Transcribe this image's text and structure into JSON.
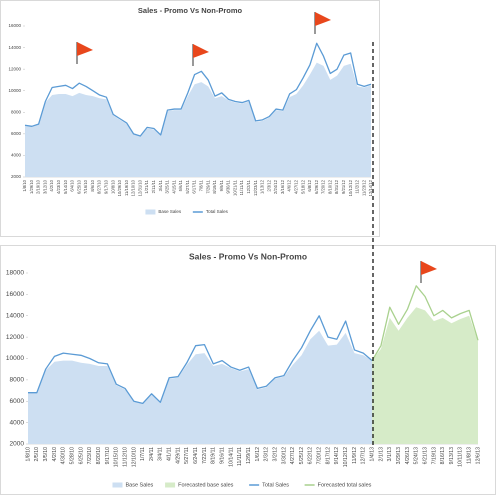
{
  "chart_data": [
    {
      "type": "area-line",
      "title": "Sales - Promo Vs Non-Promo",
      "categories": [
        "1/8/10",
        "1/29/10",
        "2/19/10",
        "3/12/10",
        "4/2/10",
        "4/23/10",
        "5/14/10",
        "6/4/10",
        "6/25/10",
        "7/16/10",
        "8/6/10",
        "8/27/10",
        "9/17/10",
        "10/8/10",
        "10/29/10",
        "11/19/10",
        "12/10/10",
        "12/31/10",
        "1/21/11",
        "2/11/11",
        "3/4/11",
        "3/25/11",
        "4/15/11",
        "5/6/11",
        "5/27/11",
        "6/17/11",
        "7/8/11",
        "7/29/11",
        "8/19/11",
        "9/9/11",
        "9/30/11",
        "10/21/11",
        "11/11/11",
        "12/2/11",
        "12/23/11",
        "1/13/12",
        "2/3/12",
        "2/24/12",
        "3/16/12",
        "4/6/12",
        "4/27/12",
        "5/18/12",
        "6/8/12",
        "6/29/12",
        "7/20/12",
        "8/10/12",
        "8/31/12",
        "9/21/12",
        "10/12/12",
        "11/2/12",
        "11/23/12",
        "12/14/12"
      ],
      "series": [
        {
          "name": "Base Sales",
          "style": "area",
          "color": "#cddff2",
          "values": [
            6800,
            6700,
            6900,
            8900,
            9600,
            9700,
            9700,
            9500,
            9800,
            9600,
            9500,
            9300,
            9200,
            7700,
            7300,
            6900,
            6000,
            5800,
            6500,
            6400,
            5900,
            8100,
            8200,
            8200,
            9500,
            10600,
            10800,
            10400,
            9300,
            9500,
            9100,
            8900,
            8800,
            9000,
            7100,
            7200,
            7500,
            8200,
            8100,
            9400,
            9700,
            10500,
            11500,
            12600,
            12300,
            11000,
            11400,
            12300,
            12500,
            10400,
            10300,
            10500
          ]
        },
        {
          "name": "Total Sales",
          "style": "line",
          "color": "#5b9bd5",
          "values": [
            6800,
            6700,
            6900,
            9000,
            10300,
            10400,
            10500,
            10200,
            10700,
            10400,
            10000,
            9600,
            9400,
            7800,
            7400,
            7000,
            6000,
            5800,
            6600,
            6500,
            5900,
            8200,
            8300,
            8300,
            9800,
            11500,
            11800,
            11000,
            9500,
            9800,
            9200,
            9000,
            8900,
            9100,
            7200,
            7300,
            7600,
            8300,
            8200,
            9700,
            10100,
            11200,
            12400,
            14400,
            13200,
            11600,
            12000,
            13300,
            13500,
            10600,
            10400,
            10600
          ]
        }
      ],
      "ylim": [
        2000,
        16000
      ],
      "yticks": [
        2000,
        4000,
        6000,
        8000,
        10000,
        12000,
        14000,
        16000
      ]
    },
    {
      "type": "area-line",
      "title": "Sales - Promo Vs Non-Promo",
      "categories": [
        "1/8/10",
        "2/5/10",
        "3/5/10",
        "4/2/10",
        "4/30/10",
        "5/28/10",
        "6/25/10",
        "7/23/10",
        "8/20/10",
        "9/17/10",
        "10/15/10",
        "11/12/10",
        "12/10/10",
        "1/7/11",
        "2/4/11",
        "3/4/11",
        "4/1/11",
        "4/29/11",
        "5/27/11",
        "6/24/11",
        "7/22/11",
        "8/19/11",
        "9/16/11",
        "10/14/11",
        "11/11/11",
        "12/9/11",
        "1/6/12",
        "2/3/12",
        "3/2/12",
        "3/30/12",
        "4/27/12",
        "5/25/12",
        "6/22/12",
        "7/20/12",
        "8/17/12",
        "9/14/12",
        "10/12/12",
        "11/9/12",
        "12/7/12",
        "1/4/13",
        "2/1/13",
        "3/1/13",
        "3/29/13",
        "4/26/13",
        "5/24/13",
        "6/21/13",
        "7/19/13",
        "8/16/13",
        "9/13/13",
        "10/11/13",
        "11/8/13",
        "12/6/13"
      ],
      "series": [
        {
          "name": "Base Sales",
          "style": "area",
          "color": "#cddff2",
          "values": [
            6800,
            6800,
            8900,
            9700,
            9800,
            9800,
            9600,
            9500,
            9300,
            9300,
            7500,
            7100,
            6000,
            5800,
            6600,
            5900,
            8100,
            8200,
            9400,
            10400,
            10500,
            9300,
            9500,
            9100,
            8800,
            9000,
            7100,
            7300,
            8100,
            8300,
            9400,
            10300,
            11800,
            12600,
            11200,
            11300,
            12400,
            10500,
            10300,
            9800,
            null,
            null,
            null,
            null,
            null,
            null,
            null,
            null,
            null,
            null,
            null,
            null
          ]
        },
        {
          "name": "Forecasted base sales",
          "style": "area",
          "color": "#d6ebc8",
          "values": [
            null,
            null,
            null,
            null,
            null,
            null,
            null,
            null,
            null,
            null,
            null,
            null,
            null,
            null,
            null,
            null,
            null,
            null,
            null,
            null,
            null,
            null,
            null,
            null,
            null,
            null,
            null,
            null,
            null,
            null,
            null,
            null,
            null,
            null,
            null,
            null,
            null,
            null,
            null,
            9800,
            10900,
            13800,
            12600,
            13800,
            14800,
            14500,
            13500,
            13800,
            13300,
            13700,
            14000,
            11600
          ]
        },
        {
          "name": "Total Sales",
          "style": "line",
          "color": "#5b9bd5",
          "values": [
            6800,
            6800,
            9000,
            10200,
            10500,
            10400,
            10300,
            10000,
            9600,
            9500,
            7600,
            7200,
            6000,
            5800,
            6700,
            5900,
            8200,
            8300,
            9600,
            11200,
            11300,
            9500,
            9800,
            9200,
            8900,
            9200,
            7200,
            7400,
            8200,
            8400,
            9800,
            11000,
            12600,
            14000,
            12000,
            11800,
            13500,
            10800,
            10500,
            9800,
            null,
            null,
            null,
            null,
            null,
            null,
            null,
            null,
            null,
            null,
            null,
            null
          ]
        },
        {
          "name": "Forecasted total sales",
          "style": "line",
          "color": "#a9d18e",
          "values": [
            null,
            null,
            null,
            null,
            null,
            null,
            null,
            null,
            null,
            null,
            null,
            null,
            null,
            null,
            null,
            null,
            null,
            null,
            null,
            null,
            null,
            null,
            null,
            null,
            null,
            null,
            null,
            null,
            null,
            null,
            null,
            null,
            null,
            null,
            null,
            null,
            null,
            null,
            null,
            9800,
            11200,
            14800,
            13200,
            14600,
            16800,
            15800,
            14000,
            14500,
            13800,
            14200,
            14500,
            11700
          ]
        }
      ],
      "ylim": [
        2000,
        18000
      ],
      "yticks": [
        2000,
        4000,
        6000,
        8000,
        10000,
        12000,
        14000,
        16000,
        18000
      ]
    }
  ]
}
